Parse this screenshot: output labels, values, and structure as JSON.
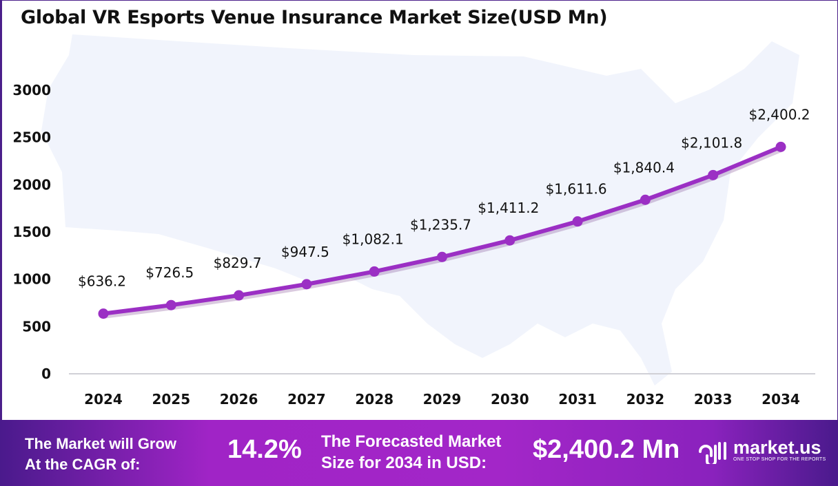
{
  "chart_data": {
    "type": "line",
    "title": "Global VR Esports Venue Insurance Market Size(USD Mn)",
    "categories": [
      "2024",
      "2025",
      "2026",
      "2027",
      "2028",
      "2029",
      "2030",
      "2031",
      "2032",
      "2033",
      "2034"
    ],
    "values": [
      636.2,
      726.5,
      829.7,
      947.5,
      1082.1,
      1235.7,
      1411.2,
      1611.6,
      1840.4,
      2101.8,
      2400.2
    ],
    "data_labels": [
      "$636.2",
      "$726.5",
      "$829.7",
      "$947.5",
      "$1,082.1",
      "$1,235.7",
      "$1,411.2",
      "$1,611.6",
      "$1,840.4",
      "$2,101.8",
      "$2,400.2"
    ],
    "yticks": [
      "0",
      "500",
      "1000",
      "1500",
      "2000",
      "2500",
      "3000"
    ],
    "ylim": [
      0,
      3000
    ],
    "grid": false,
    "line_color": "#9b2fc4"
  },
  "footer": {
    "cagr_label_1": "The Market will Grow",
    "cagr_label_2": "At the CAGR of:",
    "cagr_value": "14.2%",
    "forecast_label_1": "The Forecasted Market",
    "forecast_label_2": "Size for 2034 in USD:",
    "forecast_value": "$2,400.2 Mn",
    "brand": "market.us",
    "brand_tagline": "ONE STOP SHOP FOR THE REPORTS"
  }
}
